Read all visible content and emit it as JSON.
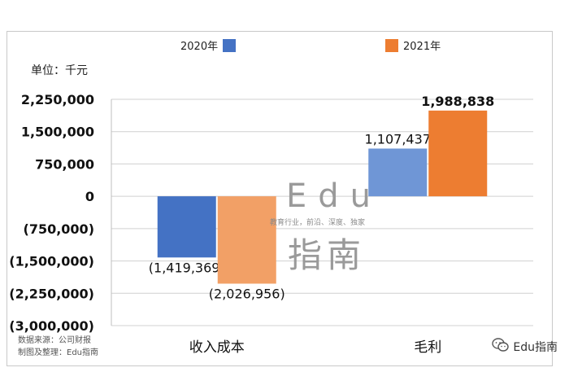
{
  "unit_label": "单位：千元",
  "source_lines": [
    "数据来源：公司财报",
    "制图及整理：Edu指南"
  ],
  "watermark": {
    "title": "Edu",
    "subtitle": "教育行业，前沿、深度、独家",
    "cn": "指南"
  },
  "wechat_label": "Edu指南",
  "colors": {
    "s2020": "#4472c4",
    "s2020_light": "#6f96d6",
    "s2021": "#ed7d31",
    "s2021_light": "#f2a066"
  },
  "chart_data": {
    "type": "bar",
    "categories": [
      "收入成本",
      "毛利"
    ],
    "series": [
      {
        "name": "2020年",
        "values": [
          -1419369,
          1107437
        ],
        "labels": [
          "(1,419,369)",
          "1,107,437"
        ]
      },
      {
        "name": "2021年",
        "values": [
          -2026956,
          1988838
        ],
        "labels": [
          "(2,026,956)",
          "1,988,838"
        ]
      }
    ],
    "ylim": [
      -3000000,
      2250000
    ],
    "yticks": [
      2250000,
      1500000,
      750000,
      0,
      -750000,
      -1500000,
      -2250000,
      -3000000
    ],
    "ytick_labels": [
      "2,250,000",
      "1,500,000",
      "750,000",
      "0",
      "(750,000)",
      "(1,500,000)",
      "(2,250,000)",
      "(3,000,000)"
    ],
    "grid": true,
    "legend": "top"
  }
}
